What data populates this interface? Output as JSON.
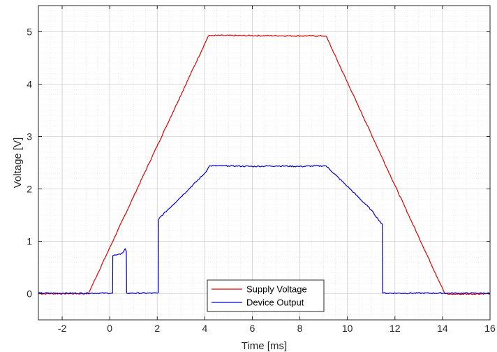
{
  "chart_data": {
    "type": "line",
    "title": "",
    "xlabel": "Time [ms]",
    "ylabel": "Voltage [V]",
    "xlim": [
      -3,
      16
    ],
    "ylim": [
      -0.5,
      5.5
    ],
    "xticks": [
      -2,
      0,
      2,
      4,
      6,
      8,
      10,
      12,
      14,
      16
    ],
    "yticks": [
      0,
      1,
      2,
      3,
      4,
      5
    ],
    "grid": "major and minor, dotted",
    "legend_position": "bottom-center",
    "series": [
      {
        "name": "Supply Voltage",
        "color": "#e00000",
        "x": [
          -3,
          -0.9,
          4.15,
          4.3,
          9.1,
          14.1,
          14.3,
          16
        ],
        "y": [
          0.0,
          0.0,
          4.92,
          4.93,
          4.92,
          0.0,
          -0.01,
          0.0
        ]
      },
      {
        "name": "Device Output",
        "color": "#0000d0",
        "x": [
          -3,
          0.12,
          0.13,
          0.14,
          0.3,
          0.45,
          0.55,
          0.6,
          0.65,
          0.7,
          0.71,
          0.72,
          2.0,
          2.05,
          2.06,
          2.1,
          3.0,
          4.0,
          4.2,
          5.0,
          6.0,
          7.0,
          8.0,
          9.0,
          9.1,
          10.0,
          11.0,
          11.45,
          11.47,
          11.48,
          11.5,
          16
        ],
        "y": [
          0.01,
          0.01,
          0.7,
          0.73,
          0.74,
          0.75,
          0.78,
          0.82,
          0.86,
          0.8,
          0.02,
          0.01,
          0.01,
          0.02,
          1.42,
          1.45,
          1.85,
          2.3,
          2.44,
          2.44,
          2.43,
          2.44,
          2.43,
          2.44,
          2.44,
          2.05,
          1.6,
          1.33,
          1.33,
          0.02,
          0.01,
          0.01
        ]
      }
    ]
  }
}
